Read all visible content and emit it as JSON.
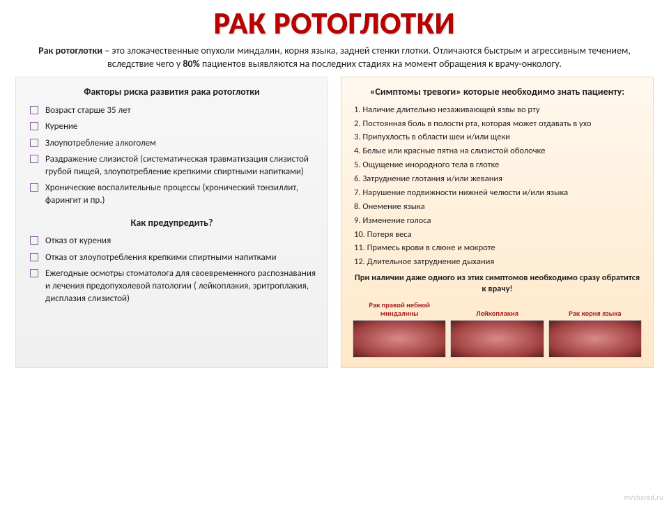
{
  "title": "РАК РОТОГЛОТКИ",
  "intro_prefix": "Рак ротоглотки",
  "intro_body": " – это злокачественные опухоли миндалин, корня языка, задней стенки глотки. Отличаются быстрым и агрессивным течением, вследствие чего у ",
  "intro_pct": "80%",
  "intro_suffix": " пациентов выявляются на последних стадиях на момент обращения к врачу-онкологу.",
  "left": {
    "heading": "Факторы риска развития рака ротоглотки",
    "risks": [
      "Возраст старше 35 лет",
      "Курение",
      "Злоупотребление алкоголем",
      "Раздражение слизистой (систематическая травматизация слизистой грубой пищей, злоупотребление крепкими спиртными напитками)",
      "Хронические воспалительные процессы (хронический тонзиллит, фарингит и пр.)"
    ],
    "subheading": "Как предупредить?",
    "prevention": [
      "Отказ от курения",
      "Отказ от злоупотребления крепкими спиртными напитками",
      "Ежегодные осмотры стоматолога для своевременного распознавания и лечения предопухолевой патологии ( лейкоплакия, эритроплакия, дисплазия слизистой)"
    ]
  },
  "right": {
    "heading": "«Симптомы тревоги» которые необходимо знать пациенту:",
    "symptoms": [
      "Наличие длительно незаживающей язвы во рту",
      "Постоянная боль в полости рта, которая может отдавать в ухо",
      "Припухлость в области шеи и/или щеки",
      "Белые или красные пятна на слизистой оболочке",
      "Ощущение инородного тела в глотке",
      "Затруднение глотания и/или жевания",
      "Нарушение подвижности нижней челюсти и/или языка",
      "Онемение языка",
      "Изменение голоса",
      "Потеря веса",
      "Примесь крови в слюне и мокроте",
      "Длительное затруднение дыхания"
    ],
    "alert": "При наличии даже одного из этих симптомов необходимо сразу обратится к врачу!",
    "images": [
      {
        "caption": "Рак правой небной миндалины"
      },
      {
        "caption": "Лейкоплакия"
      },
      {
        "caption": "Рак корня языка"
      }
    ]
  },
  "watermark": "myshared.ru",
  "colors": {
    "title": "#c00000",
    "caption": "#a02020",
    "checkbox_border": "#8a5a9a",
    "left_bg_top": "#f7f7f7",
    "left_bg_bottom": "#f0f0f0",
    "right_bg_top": "#fff8ef",
    "right_bg_bottom": "#ffe8c8"
  }
}
